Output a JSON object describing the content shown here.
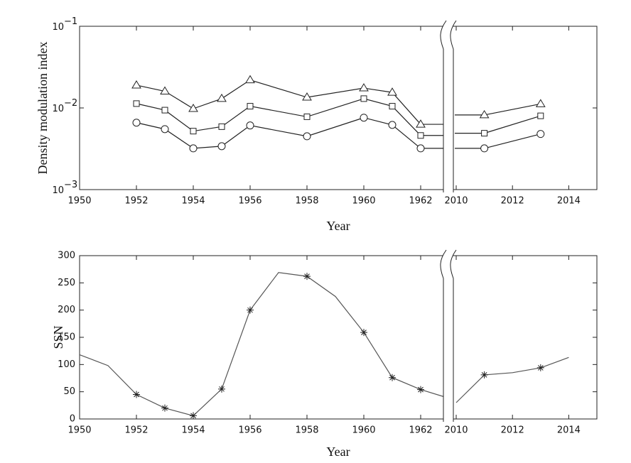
{
  "chart_data": [
    {
      "type": "line",
      "ylabel": "Density modulation index",
      "xlabel": "Year",
      "x": [
        1952,
        1953,
        1954,
        1955,
        1956,
        1958,
        1960,
        1961,
        1962,
        2011,
        2013
      ],
      "xlim": [
        1950,
        2015
      ],
      "xbreak": [
        1963,
        2010
      ],
      "xticks": [
        1950,
        1952,
        1954,
        1956,
        1958,
        1960,
        1962,
        2010,
        2012,
        2014
      ],
      "yscale": "log",
      "ylim": [
        0.001,
        0.1
      ],
      "yticks": [
        {
          "value": 0.001,
          "label": "10",
          "exponent": "−3"
        },
        {
          "value": 0.01,
          "label": "10",
          "exponent": "−2"
        },
        {
          "value": 0.1,
          "label": "10",
          "exponent": "−1"
        }
      ],
      "break_connectors": true,
      "series": [
        {
          "marker": "triangle",
          "color": "#222222",
          "values": [
            0.019,
            0.016,
            0.0098,
            0.013,
            0.022,
            0.0135,
            0.0175,
            0.0155,
            0.0063,
            0.0082,
            0.0112
          ]
        },
        {
          "marker": "square",
          "color": "#222222",
          "values": [
            0.0113,
            0.0094,
            0.0052,
            0.0059,
            0.0105,
            0.0078,
            0.013,
            0.0105,
            0.0046,
            0.0049,
            0.008
          ]
        },
        {
          "marker": "circle",
          "color": "#222222",
          "values": [
            0.0066,
            0.0055,
            0.0032,
            0.0034,
            0.0061,
            0.0045,
            0.0076,
            0.0062,
            0.0032,
            0.0032,
            0.0048
          ]
        }
      ]
    },
    {
      "type": "line",
      "ylabel": "SSN",
      "xlabel": "Year",
      "x": [
        1950,
        1951,
        1952,
        1953,
        1954,
        1955,
        1956,
        1957,
        1958,
        1959,
        1960,
        1961,
        1962,
        1963,
        2010,
        2011,
        2012,
        2013,
        2014
      ],
      "xlim": [
        1950,
        2015
      ],
      "xbreak": [
        1963,
        2010
      ],
      "xticks": [
        1950,
        1952,
        1954,
        1956,
        1958,
        1960,
        1962,
        2010,
        2012,
        2014
      ],
      "ylim": [
        0,
        300
      ],
      "yticks": [
        0,
        50,
        100,
        150,
        200,
        250,
        300
      ],
      "series": [
        {
          "color": "#555555",
          "values": [
            118,
            98,
            45,
            20,
            6,
            55,
            200,
            269,
            262,
            225,
            159,
            76,
            54,
            38,
            30,
            81,
            85,
            94,
            113
          ]
        },
        {
          "marker": "star",
          "color": "#222222",
          "line": false,
          "x": [
            1952,
            1953,
            1954,
            1955,
            1956,
            1958,
            1960,
            1961,
            1962,
            2011,
            2013
          ],
          "values": [
            45,
            20,
            6,
            55,
            200,
            262,
            159,
            76,
            54,
            81,
            94
          ]
        }
      ]
    }
  ]
}
